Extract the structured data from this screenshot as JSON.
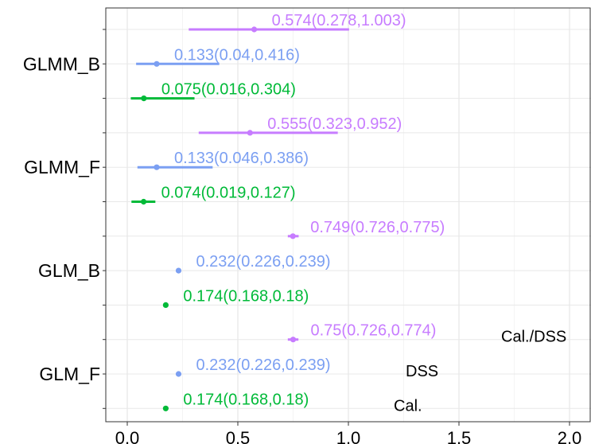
{
  "chart_data": {
    "type": "forest",
    "title": "",
    "xlabel": "",
    "ylabel": "",
    "xlim": [
      -0.1,
      2.05
    ],
    "x_ticks": [
      "0.0",
      "0.5",
      "1.0",
      "1.5",
      "2.0"
    ],
    "grid": true,
    "categories": [
      "GLMM_B",
      "GLMM_F",
      "GLM_B",
      "GLM_F"
    ],
    "series": [
      {
        "name": "Cal./DSS",
        "color": "#c77cff"
      },
      {
        "name": "DSS",
        "color": "#7b9ff2"
      },
      {
        "name": "Cal.",
        "color": "#00ba38"
      }
    ],
    "legend_series": [
      "Cal./DSS",
      "DSS",
      "Cal."
    ],
    "rows": [
      {
        "category": "GLMM_B",
        "series": "Cal./DSS",
        "estimate": 0.574,
        "lower": 0.278,
        "upper": 1.003,
        "label": "0.574(0.278,1.003)"
      },
      {
        "category": "GLMM_B",
        "series": "DSS",
        "estimate": 0.133,
        "lower": 0.04,
        "upper": 0.416,
        "label": "0.133(0.04,0.416)"
      },
      {
        "category": "GLMM_B",
        "series": "Cal.",
        "estimate": 0.075,
        "lower": 0.016,
        "upper": 0.304,
        "label": "0.075(0.016,0.304)"
      },
      {
        "category": "GLMM_F",
        "series": "Cal./DSS",
        "estimate": 0.555,
        "lower": 0.323,
        "upper": 0.952,
        "label": "0.555(0.323,0.952)"
      },
      {
        "category": "GLMM_F",
        "series": "DSS",
        "estimate": 0.133,
        "lower": 0.046,
        "upper": 0.386,
        "label": "0.133(0.046,0.386)"
      },
      {
        "category": "GLMM_F",
        "series": "Cal.",
        "estimate": 0.074,
        "lower": 0.019,
        "upper": 0.127,
        "label": "0.074(0.019,0.127)"
      },
      {
        "category": "GLM_B",
        "series": "Cal./DSS",
        "estimate": 0.749,
        "lower": 0.726,
        "upper": 0.775,
        "label": "0.749(0.726,0.775)"
      },
      {
        "category": "GLM_B",
        "series": "DSS",
        "estimate": 0.232,
        "lower": 0.226,
        "upper": 0.239,
        "label": "0.232(0.226,0.239)"
      },
      {
        "category": "GLM_B",
        "series": "Cal.",
        "estimate": 0.174,
        "lower": 0.168,
        "upper": 0.18,
        "label": "0.174(0.168,0.18)"
      },
      {
        "category": "GLM_F",
        "series": "Cal./DSS",
        "estimate": 0.75,
        "lower": 0.726,
        "upper": 0.774,
        "label": "0.75(0.726,0.774)"
      },
      {
        "category": "GLM_F",
        "series": "DSS",
        "estimate": 0.232,
        "lower": 0.226,
        "upper": 0.239,
        "label": "0.232(0.226,0.239)"
      },
      {
        "category": "GLM_F",
        "series": "Cal.",
        "estimate": 0.174,
        "lower": 0.168,
        "upper": 0.18,
        "label": "0.174(0.168,0.18)"
      }
    ]
  }
}
